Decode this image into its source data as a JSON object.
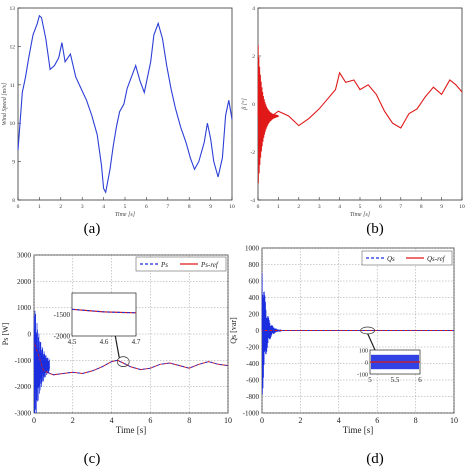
{
  "figure": {
    "captions": [
      "(a)",
      "(b)",
      "(c)",
      "(d)"
    ]
  },
  "chart_data": [
    {
      "panel": "(a)",
      "type": "line",
      "ylabel": "Wind Speed [m/s]",
      "xlabel": "Time [s]",
      "xlim": [
        0,
        10
      ],
      "ylim": [
        8,
        13
      ],
      "xticks": [
        "0",
        "1",
        "2",
        "3",
        "4",
        "5",
        "6",
        "7",
        "8",
        "9",
        "10"
      ],
      "yticks": [
        "8",
        "9",
        "10",
        "11",
        "12",
        "13"
      ],
      "grid": false,
      "color": "#2c3fd6",
      "series": [
        {
          "x": [
            0,
            0.2,
            0.35,
            0.5,
            0.7,
            0.9,
            1.0,
            1.1,
            1.3,
            1.5,
            1.7,
            1.9,
            2.05,
            2.2,
            2.45,
            2.7,
            2.95,
            3.2,
            3.45,
            3.7,
            3.9,
            4.0,
            4.1,
            4.3,
            4.45,
            4.6,
            4.75,
            4.95,
            5.1,
            5.3,
            5.5,
            5.7,
            5.9,
            6.05,
            6.2,
            6.35,
            6.55,
            6.75,
            6.95,
            7.15,
            7.35,
            7.6,
            7.85,
            8.05,
            8.25,
            8.45,
            8.7,
            8.85,
            9.0,
            9.15,
            9.35,
            9.55,
            9.7,
            9.85,
            10.0
          ],
          "y": [
            9.3,
            10.8,
            11.2,
            11.7,
            12.3,
            12.6,
            12.8,
            12.75,
            12.2,
            11.4,
            11.5,
            11.7,
            12.1,
            11.6,
            11.8,
            11.2,
            10.9,
            10.6,
            10.2,
            9.7,
            8.9,
            8.3,
            8.2,
            8.8,
            9.4,
            9.9,
            10.3,
            10.5,
            10.9,
            11.2,
            11.5,
            11.1,
            10.8,
            11.2,
            11.6,
            12.3,
            12.6,
            12.2,
            11.5,
            10.9,
            10.4,
            9.9,
            9.5,
            9.1,
            8.8,
            9.0,
            9.5,
            10.0,
            9.6,
            9.0,
            8.6,
            9.1,
            10.2,
            10.6,
            10.1
          ]
        }
      ]
    },
    {
      "panel": "(b)",
      "type": "line",
      "ylabel": "β [°]",
      "xlabel": "Time [s]",
      "xlim": [
        0,
        10
      ],
      "ylim": [
        -4,
        4
      ],
      "xticks": [
        "0",
        "1",
        "2",
        "3",
        "4",
        "5",
        "6",
        "7",
        "8",
        "9",
        "10"
      ],
      "yticks": [
        "-4",
        "-2",
        "0",
        "2",
        "4"
      ],
      "grid": false,
      "color": "#e01818",
      "series": [
        {
          "x": [
            0,
            0.5,
            1.0,
            1.5,
            2.0,
            2.5,
            3.0,
            3.4,
            3.8,
            4.0,
            4.3,
            4.7,
            5.0,
            5.4,
            5.8,
            6.2,
            6.6,
            7.0,
            7.4,
            7.8,
            8.2,
            8.6,
            9.0,
            9.4,
            9.7,
            10.0
          ],
          "y": [
            -0.5,
            -0.6,
            -0.3,
            -0.5,
            -0.9,
            -0.6,
            -0.2,
            0.2,
            0.6,
            1.3,
            0.9,
            1.0,
            0.6,
            0.8,
            0.4,
            -0.3,
            -0.8,
            -1.0,
            -0.4,
            -0.2,
            0.3,
            0.7,
            0.4,
            1.0,
            0.8,
            0.5
          ]
        }
      ]
    },
    {
      "panel": "(c)",
      "type": "line",
      "xlabel": "Time [s]",
      "ylabel": "Ps [W]",
      "xlim": [
        0,
        10
      ],
      "ylim": [
        -3000,
        3000
      ],
      "xticks": [
        "0",
        "2",
        "4",
        "6",
        "8",
        "10"
      ],
      "yticks": [
        "3000",
        "2000",
        "1000",
        "0",
        "-1000",
        "-2000",
        "-3000"
      ],
      "grid": true,
      "legend": {
        "placement": "top-right",
        "items": [
          "Ps",
          "Ps-ref"
        ]
      },
      "series": [
        {
          "name": "Ps",
          "color": "#1a2ee0",
          "dashed": true,
          "x": [
            0,
            0.5,
            1,
            1.5,
            2,
            2.5,
            3,
            3.5,
            4,
            4.3,
            4.6,
            5,
            5.5,
            6,
            6.5,
            7,
            7.5,
            8,
            8.5,
            9,
            9.5,
            10
          ],
          "y": [
            -300,
            -1400,
            -1550,
            -1500,
            -1450,
            -1500,
            -1400,
            -1250,
            -1050,
            -1000,
            -1100,
            -1250,
            -1350,
            -1300,
            -1150,
            -1100,
            -1200,
            -1300,
            -1150,
            -1050,
            -1150,
            -1200
          ]
        },
        {
          "name": "Ps-ref",
          "color": "#e01818",
          "dashed": false,
          "x": [
            0,
            0.5,
            1,
            1.5,
            2,
            2.5,
            3,
            3.5,
            4,
            4.3,
            4.6,
            5,
            5.5,
            6,
            6.5,
            7,
            7.5,
            8,
            8.5,
            9,
            9.5,
            10
          ],
          "y": [
            -300,
            -1400,
            -1550,
            -1500,
            -1450,
            -1500,
            -1400,
            -1250,
            -1050,
            -1000,
            -1100,
            -1250,
            -1350,
            -1300,
            -1150,
            -1100,
            -1200,
            -1300,
            -1150,
            -1050,
            -1150,
            -1200
          ]
        }
      ],
      "inset": {
        "xlim": [
          4.5,
          4.7
        ],
        "ylim": [
          -2000,
          -1000
        ],
        "xticks": [
          "4.5",
          "4.6",
          "4.7"
        ],
        "yticks": [
          "-1500",
          "-2000"
        ]
      }
    },
    {
      "panel": "(d)",
      "type": "line",
      "xlabel": "Time [s]",
      "ylabel": "Qs [var]",
      "xlim": [
        0,
        10
      ],
      "ylim": [
        -1000,
        1000
      ],
      "xticks": [
        "0",
        "2",
        "4",
        "6",
        "8",
        "10"
      ],
      "yticks": [
        "1000",
        "800",
        "600",
        "400",
        "200",
        "0",
        "-200",
        "-400",
        "-600",
        "-800",
        "-1000"
      ],
      "grid": true,
      "legend": {
        "placement": "top-right",
        "items": [
          "Qs",
          "Qs-ref"
        ]
      },
      "series": [
        {
          "name": "Qs",
          "color": "#1a2ee0",
          "dashed": true,
          "x": [
            0,
            0.5,
            1,
            10
          ],
          "y": [
            0,
            0,
            0,
            0
          ]
        },
        {
          "name": "Qs-ref",
          "color": "#e01818",
          "dashed": false,
          "x": [
            0,
            10
          ],
          "y": [
            0,
            0
          ]
        }
      ],
      "inset": {
        "xlim": [
          5,
          6
        ],
        "ylim": [
          -100,
          100
        ],
        "xticks": [
          "5",
          "5.5",
          "6"
        ],
        "yticks": [
          "100",
          "0",
          "-100"
        ]
      }
    }
  ]
}
